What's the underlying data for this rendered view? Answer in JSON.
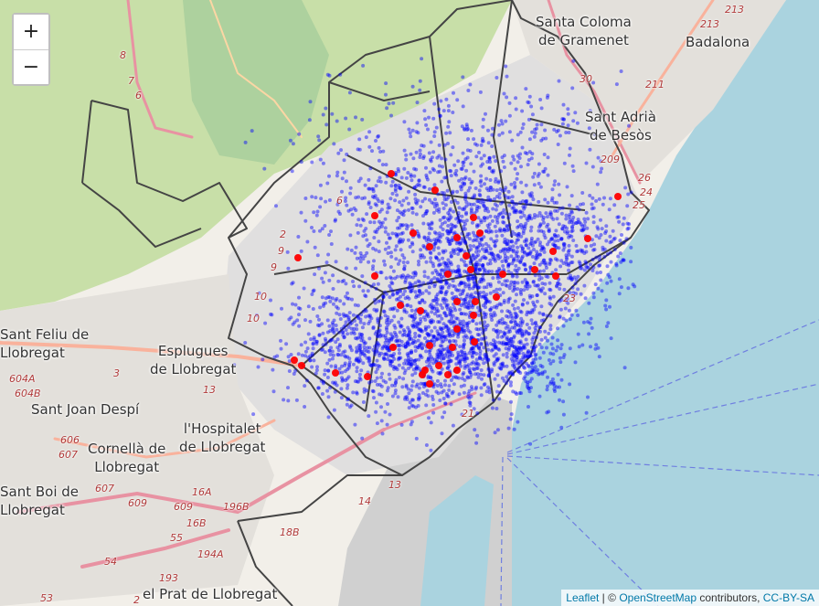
{
  "map": {
    "zoom_in_label": "+",
    "zoom_out_label": "−",
    "places": [
      {
        "key": "santa-coloma",
        "lines": [
          "Santa Coloma",
          "de Gramenet"
        ]
      },
      {
        "key": "badalona",
        "lines": [
          "Badalona"
        ]
      },
      {
        "key": "sant-adria",
        "lines": [
          "Sant Adrià",
          "de Besòs"
        ]
      },
      {
        "key": "sant-feliu",
        "lines": [
          "Sant Feliu de",
          "Llobregat"
        ]
      },
      {
        "key": "esplugues",
        "lines": [
          "Esplugues",
          "de Llobregat"
        ]
      },
      {
        "key": "sant-joan-despi",
        "lines": [
          "Sant Joan Despí"
        ]
      },
      {
        "key": "hospitalet",
        "lines": [
          "l'Hospitalet",
          "de Llobregat"
        ]
      },
      {
        "key": "cornella",
        "lines": [
          "Cornellà de",
          "Llobregat"
        ]
      },
      {
        "key": "sant-boi",
        "lines": [
          "Sant Boi de",
          "Llobregat"
        ]
      },
      {
        "key": "el-prat",
        "lines": [
          "el Prat de Llobregat"
        ]
      }
    ],
    "road_labels": [
      "213",
      "213",
      "211",
      "30",
      "209",
      "26",
      "24",
      "25",
      "8",
      "7",
      "6",
      "6",
      "2",
      "9",
      "9",
      "10",
      "10",
      "23",
      "3",
      "13",
      "13",
      "14",
      "21",
      "604A",
      "604B",
      "606",
      "607",
      "607",
      "609",
      "609",
      "16A",
      "16B",
      "55",
      "196B",
      "18B",
      "194A",
      "54",
      "193",
      "53",
      "2"
    ],
    "colors": {
      "water": "#aad3df",
      "land": "#f2efe9",
      "urban": "#e0dfdf",
      "park": "#add19e",
      "forest": "#c8dfa8",
      "motorway": "#e892a2",
      "trunk": "#f9b29c",
      "district_border": "#444444",
      "points": "#0000ff",
      "highlight_points": "#ff0000"
    }
  },
  "attribution": {
    "leaflet": "Leaflet",
    "separator": "| ©",
    "osm": "OpenStreetMap",
    "contributors": "contributors,",
    "license": "CC-BY-SA"
  }
}
